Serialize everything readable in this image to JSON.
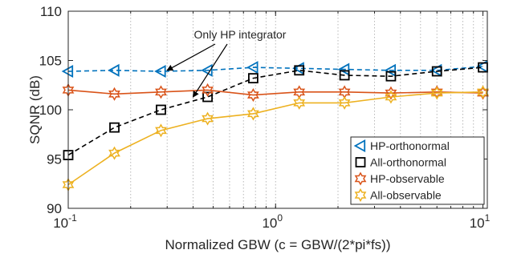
{
  "chart_data": {
    "type": "line",
    "xlabel": "Normalized GBW (c = GBW/(2*pi*fs))",
    "ylabel": "SQNR (dB)",
    "xscale": "log",
    "xlim": [
      0.1,
      10.5
    ],
    "ylim": [
      90,
      110
    ],
    "grid": "x-minor-dotted",
    "legend_position": "bottom-right",
    "x_ticks": [
      0.1,
      1,
      10
    ],
    "x_tick_labels": [
      {
        "base": "10",
        "exp": "-1"
      },
      {
        "base": "10",
        "exp": "0"
      },
      {
        "base": "10",
        "exp": "1"
      }
    ],
    "y_ticks": [
      90,
      95,
      100,
      105,
      110
    ],
    "y_tick_labels": [
      "90",
      "95",
      "100",
      "105",
      "110"
    ],
    "x": [
      0.1,
      0.167,
      0.28,
      0.47,
      0.78,
      1.3,
      2.15,
      3.6,
      6.0,
      10.0
    ],
    "series": [
      {
        "name": "HP-orthonormal",
        "color": "#0072BD",
        "marker": "triangle-left",
        "line": "dashed",
        "values": [
          103.9,
          104.0,
          103.9,
          104.0,
          104.3,
          104.2,
          104.1,
          104.0,
          104.0,
          104.4
        ]
      },
      {
        "name": "All-orthonormal",
        "color": "#000000",
        "marker": "square",
        "line": "dashed",
        "values": [
          95.4,
          98.2,
          100.0,
          101.3,
          103.2,
          104.0,
          103.5,
          103.4,
          103.9,
          104.3
        ]
      },
      {
        "name": "HP-observable",
        "color": "#D95319",
        "marker": "hexagram",
        "line": "solid",
        "values": [
          102.0,
          101.6,
          101.8,
          102.0,
          101.5,
          101.8,
          101.8,
          101.7,
          101.8,
          101.7
        ]
      },
      {
        "name": "All-observable",
        "color": "#EDB120",
        "marker": "hexagram",
        "line": "solid",
        "values": [
          92.4,
          95.6,
          97.9,
          99.1,
          99.6,
          100.7,
          100.7,
          101.3,
          101.7,
          101.8
        ]
      }
    ],
    "annotation": {
      "text": "Only HP integrator",
      "arrow_targets": [
        {
          "x": 0.3,
          "y": 104.0
        },
        {
          "x": 0.4,
          "y": 101.3
        }
      ]
    }
  }
}
